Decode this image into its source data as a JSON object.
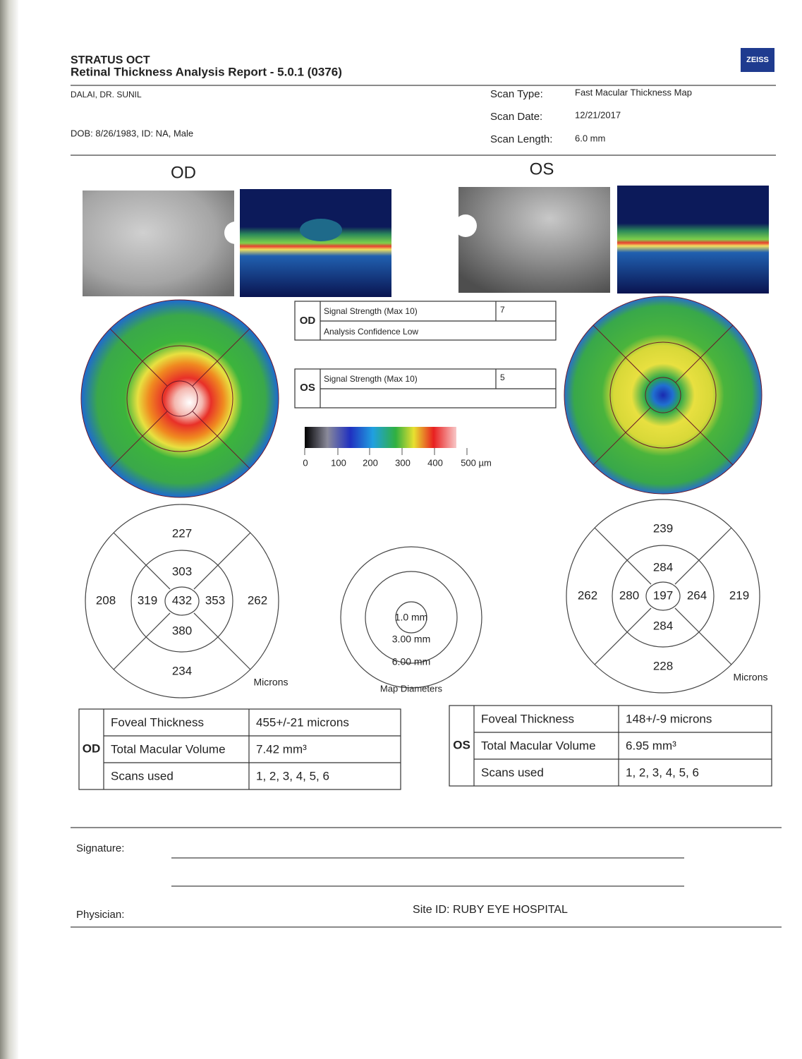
{
  "header": {
    "product": "STRATUS OCT",
    "report_title": "Retinal Thickness Analysis Report - 5.0.1 (0376)",
    "logo": "ZEISS"
  },
  "patient": {
    "name": "DALAI, DR. SUNIL",
    "dob_line": "DOB: 8/26/1983, ID: NA, Male"
  },
  "scan": {
    "labels": [
      "Scan Type:",
      "Scan Date:",
      "Scan Length:"
    ],
    "values": [
      "Fast Macular Thickness Map",
      "12/21/2017",
      "6.0 mm"
    ]
  },
  "color_scale": {
    "ticks": [
      0,
      100,
      200,
      300,
      400,
      "500 µm"
    ]
  },
  "eyes": [
    {
      "label": "OD",
      "signal": {
        "label": "Signal Strength (Max 10)",
        "value": 7,
        "confidence": "Analysis Confidence Low"
      },
      "grid": [
        227,
        303,
        208,
        319,
        432,
        353,
        262,
        380,
        234
      ],
      "units": "Microns",
      "table": {
        "rows": [
          [
            "Foveal Thickness",
            "455+/-21 microns"
          ],
          [
            "Total Macular Volume",
            "7.42 mm³"
          ],
          [
            "Scans used",
            "1, 2, 3, 4, 5, 6"
          ]
        ]
      }
    },
    {
      "label": "OS",
      "signal": {
        "label": "Signal Strength (Max 10)",
        "value": 5
      },
      "grid": [
        239,
        284,
        262,
        280,
        197,
        264,
        219,
        284,
        228
      ],
      "units": "Microns",
      "table": {
        "rows": [
          [
            "Foveal Thickness",
            "148+/-9 microns"
          ],
          [
            "Total Macular Volume",
            "6.95 mm³"
          ],
          [
            "Scans used",
            "1, 2, 3, 4, 5, 6"
          ]
        ]
      }
    }
  ],
  "map_diameters": {
    "labels": [
      "1.0 mm",
      "3.00 mm",
      "6.00 mm"
    ],
    "title": "Map Diameters"
  },
  "footer": {
    "signature": "Signature:",
    "physician": "Physician:",
    "site_id": "Site ID: RUBY EYE HOSPITAL"
  }
}
